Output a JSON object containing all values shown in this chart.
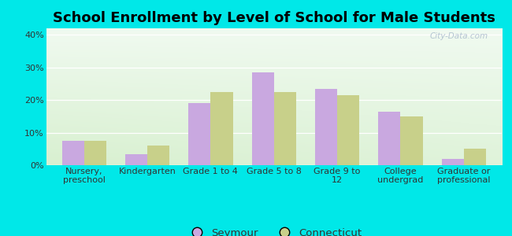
{
  "title": "School Enrollment by Level of School for Male Students",
  "categories": [
    "Nursery,\npreschool",
    "Kindergarten",
    "Grade 1 to 4",
    "Grade 5 to 8",
    "Grade 9 to\n12",
    "College\nundergrad",
    "Graduate or\nprofessional"
  ],
  "seymour": [
    7.5,
    3.5,
    19.0,
    28.5,
    23.5,
    16.5,
    2.0
  ],
  "connecticut": [
    7.5,
    6.0,
    22.5,
    22.5,
    21.5,
    15.0,
    5.0
  ],
  "seymour_color": "#c9a8e0",
  "connecticut_color": "#c8d08a",
  "background_outer": "#00e8e8",
  "ylabel_ticks": [
    "0%",
    "10%",
    "20%",
    "30%",
    "40%"
  ],
  "yticks": [
    0,
    10,
    20,
    30,
    40
  ],
  "ylim": [
    0,
    42
  ],
  "bar_width": 0.35,
  "title_fontsize": 13,
  "tick_fontsize": 8,
  "legend_fontsize": 9.5,
  "watermark": "City-Data.com"
}
